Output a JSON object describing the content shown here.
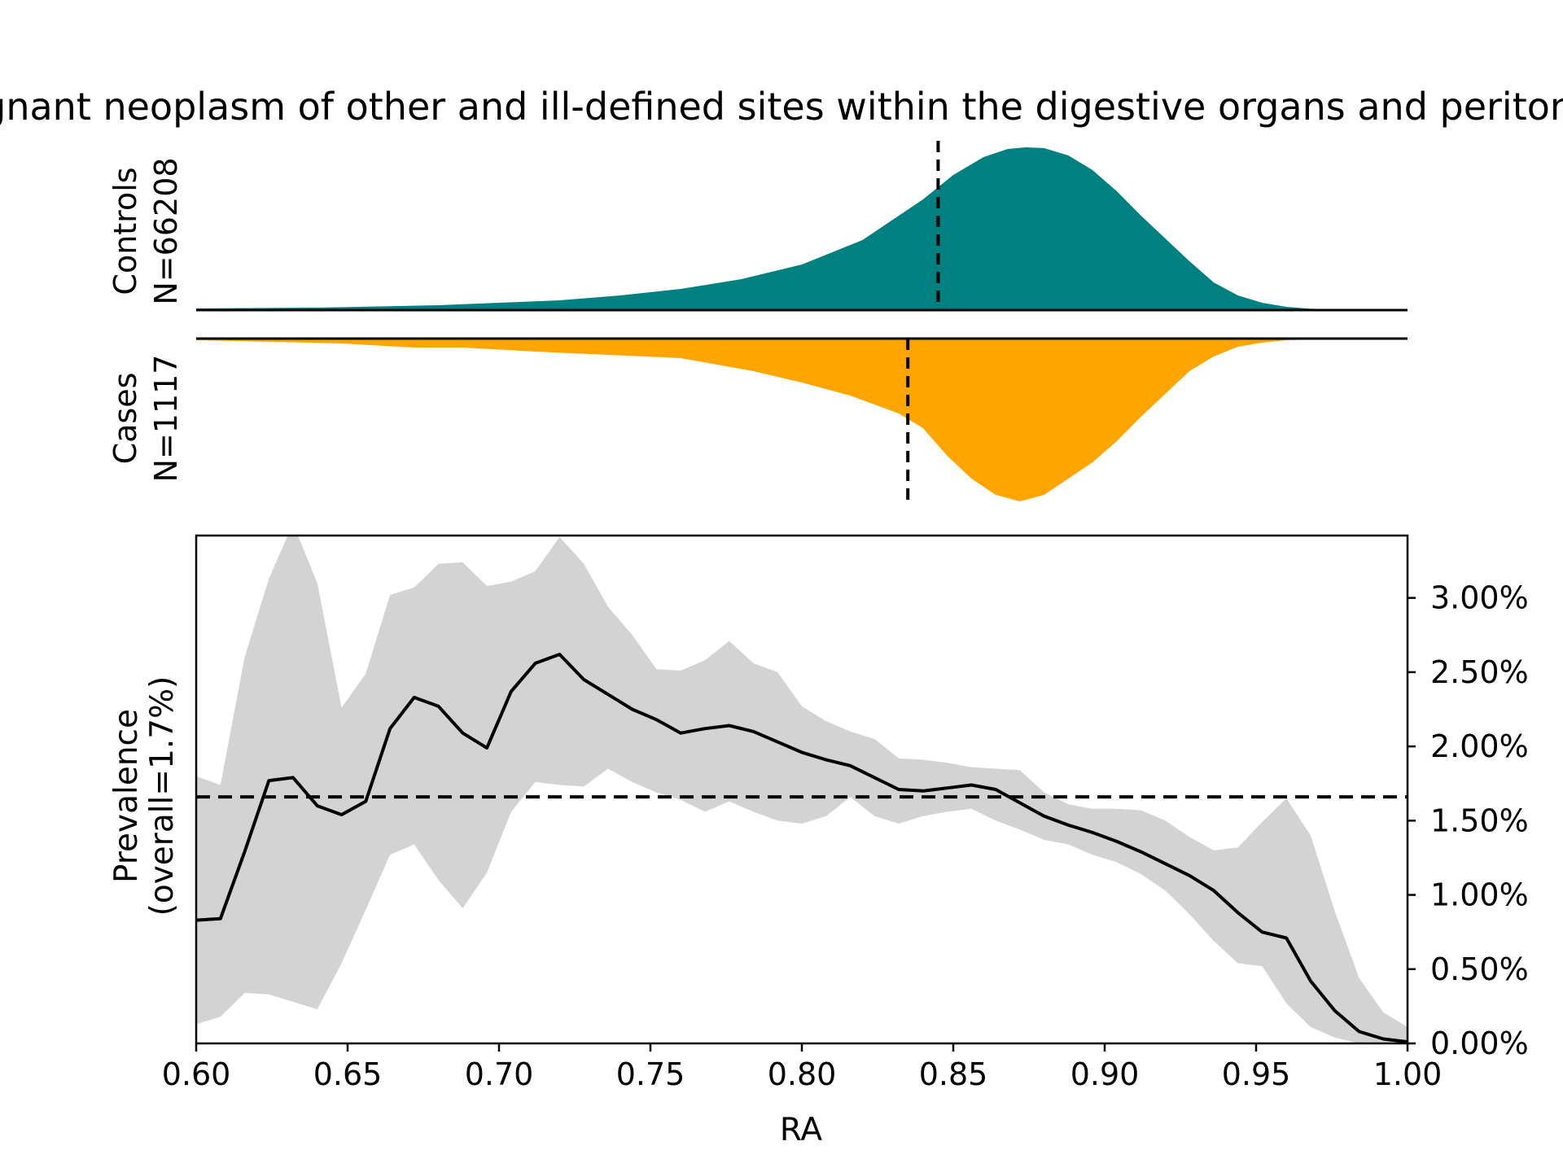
{
  "chart_data": {
    "type": "area",
    "title": "Malignant neoplasm of other and ill-defined sites within the digestive organs and peritoneum",
    "xlabel": "RA",
    "xlim": [
      0.6,
      1.0
    ],
    "xticks": [
      "0.60",
      "0.65",
      "0.70",
      "0.75",
      "0.80",
      "0.85",
      "0.90",
      "0.95",
      "1.00"
    ],
    "xtick_values": [
      0.6,
      0.65,
      0.7,
      0.75,
      0.8,
      0.85,
      0.9,
      0.95,
      1.0
    ],
    "distributions": {
      "controls": {
        "label_line1": "Controls",
        "label_line2": "N=66208",
        "color": "#008080",
        "mean_line": 0.845,
        "x": [
          0.6,
          0.64,
          0.68,
          0.7,
          0.72,
          0.74,
          0.76,
          0.78,
          0.8,
          0.82,
          0.84,
          0.85,
          0.86,
          0.868,
          0.874,
          0.88,
          0.888,
          0.896,
          0.904,
          0.912,
          0.92,
          0.928,
          0.936,
          0.944,
          0.952,
          0.96,
          0.968,
          0.976,
          0.984,
          1.0
        ],
        "density": [
          0.01,
          0.015,
          0.03,
          0.045,
          0.06,
          0.09,
          0.13,
          0.19,
          0.28,
          0.43,
          0.68,
          0.83,
          0.94,
          0.99,
          1.0,
          0.995,
          0.95,
          0.86,
          0.73,
          0.58,
          0.44,
          0.3,
          0.17,
          0.09,
          0.045,
          0.02,
          0.008,
          0.003,
          0.001,
          0.0
        ]
      },
      "cases": {
        "label_line1": "Cases",
        "label_line2": "N=1117",
        "color": "#FFA500",
        "mean_line": 0.835,
        "x": [
          0.6,
          0.625,
          0.648,
          0.672,
          0.688,
          0.712,
          0.736,
          0.76,
          0.784,
          0.8,
          0.816,
          0.832,
          0.84,
          0.848,
          0.856,
          0.864,
          0.872,
          0.88,
          0.888,
          0.896,
          0.904,
          0.912,
          0.92,
          0.928,
          0.936,
          0.944,
          0.952,
          0.96,
          0.968,
          0.984,
          1.0
        ],
        "density": [
          0.01,
          0.02,
          0.03,
          0.055,
          0.055,
          0.08,
          0.1,
          0.12,
          0.2,
          0.27,
          0.35,
          0.46,
          0.55,
          0.72,
          0.86,
          0.96,
          1.0,
          0.96,
          0.86,
          0.76,
          0.63,
          0.48,
          0.34,
          0.2,
          0.11,
          0.05,
          0.025,
          0.01,
          0.005,
          0.002,
          0.0
        ]
      }
    },
    "prevalence": {
      "ylabel_line1": "Prevalence",
      "ylabel_line2": "(overall=1.7%)",
      "ylim": [
        0,
        3.42
      ],
      "yticks": [
        "0.00%",
        "0.50%",
        "1.00%",
        "1.50%",
        "2.00%",
        "2.50%",
        "3.00%"
      ],
      "ytick_values": [
        0,
        0.5,
        1.0,
        1.5,
        2.0,
        2.5,
        3.0
      ],
      "overall_line": 1.66,
      "line_color": "#000000",
      "band_color": "#D3D3D3",
      "x": [
        0.6,
        0.608,
        0.616,
        0.624,
        0.632,
        0.64,
        0.648,
        0.656,
        0.664,
        0.672,
        0.68,
        0.688,
        0.696,
        0.704,
        0.712,
        0.72,
        0.728,
        0.736,
        0.744,
        0.752,
        0.76,
        0.768,
        0.776,
        0.784,
        0.792,
        0.8,
        0.808,
        0.816,
        0.824,
        0.832,
        0.84,
        0.848,
        0.856,
        0.864,
        0.872,
        0.88,
        0.888,
        0.896,
        0.904,
        0.912,
        0.92,
        0.928,
        0.936,
        0.944,
        0.952,
        0.96,
        0.968,
        0.976,
        0.984,
        0.992,
        1.0
      ],
      "values": [
        0.83,
        0.84,
        1.29,
        1.77,
        1.79,
        1.6,
        1.54,
        1.63,
        2.12,
        2.33,
        2.27,
        2.09,
        1.99,
        2.37,
        2.56,
        2.62,
        2.45,
        2.35,
        2.25,
        2.18,
        2.09,
        2.12,
        2.14,
        2.1,
        2.03,
        1.96,
        1.91,
        1.87,
        1.79,
        1.71,
        1.7,
        1.72,
        1.74,
        1.71,
        1.62,
        1.53,
        1.47,
        1.42,
        1.36,
        1.29,
        1.21,
        1.13,
        1.03,
        0.88,
        0.75,
        0.71,
        0.42,
        0.22,
        0.08,
        0.03,
        0.01
      ],
      "upper": [
        1.8,
        1.74,
        2.6,
        3.13,
        3.5,
        3.1,
        2.26,
        2.49,
        3.02,
        3.07,
        3.23,
        3.24,
        3.08,
        3.11,
        3.18,
        3.41,
        3.23,
        2.94,
        2.75,
        2.52,
        2.51,
        2.58,
        2.71,
        2.56,
        2.5,
        2.27,
        2.17,
        2.1,
        2.05,
        1.92,
        1.91,
        1.89,
        1.86,
        1.85,
        1.84,
        1.69,
        1.61,
        1.58,
        1.58,
        1.57,
        1.5,
        1.39,
        1.3,
        1.32,
        1.49,
        1.65,
        1.4,
        0.89,
        0.44,
        0.21,
        0.11
      ],
      "lower": [
        0.13,
        0.18,
        0.34,
        0.33,
        0.28,
        0.23,
        0.54,
        0.9,
        1.27,
        1.34,
        1.1,
        0.91,
        1.15,
        1.56,
        1.76,
        1.74,
        1.73,
        1.85,
        1.76,
        1.69,
        1.64,
        1.56,
        1.63,
        1.56,
        1.5,
        1.48,
        1.53,
        1.66,
        1.53,
        1.48,
        1.53,
        1.56,
        1.58,
        1.5,
        1.44,
        1.37,
        1.34,
        1.27,
        1.22,
        1.14,
        1.03,
        0.87,
        0.69,
        0.54,
        0.52,
        0.27,
        0.11,
        0.04,
        0.0,
        0.0,
        0.0
      ]
    }
  }
}
